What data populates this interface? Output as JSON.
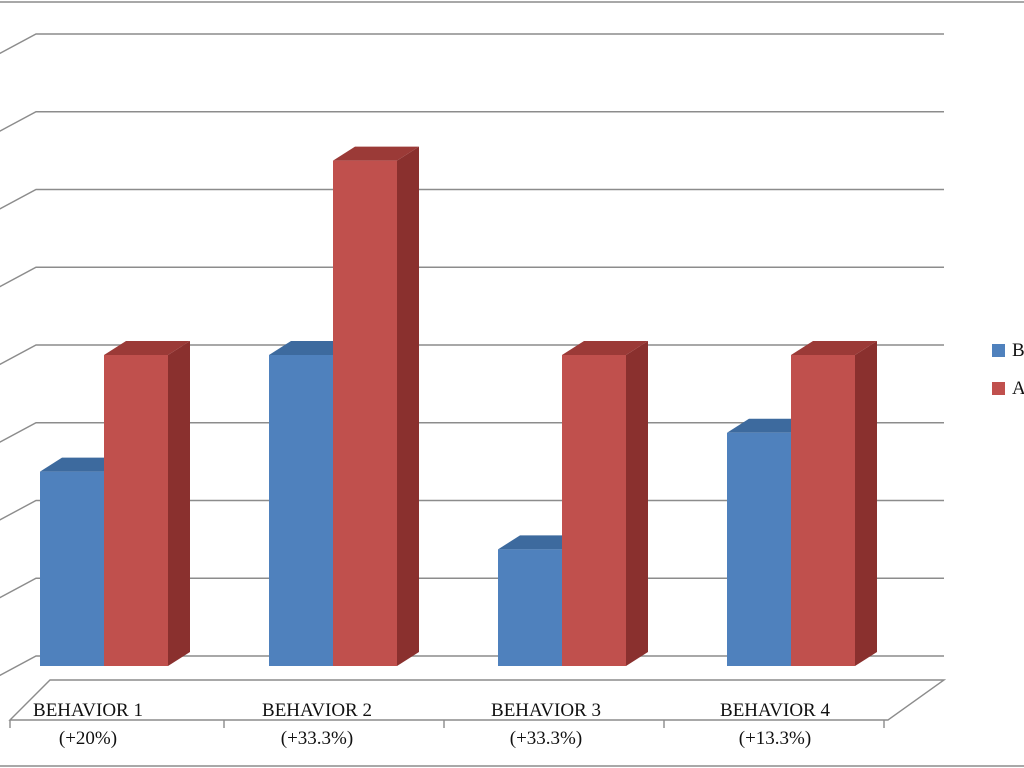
{
  "chart_data": {
    "type": "bar",
    "categories": [
      {
        "name": "BEHAVIOR 1",
        "change": "(+20%)"
      },
      {
        "name": "BEHAVIOR 2",
        "change": "(+33.3%)"
      },
      {
        "name": "BEHAVIOR 3",
        "change": "(+33.3%)"
      },
      {
        "name": "BEHAVIOR 4",
        "change": "(+13.3%)"
      }
    ],
    "series": [
      {
        "name": "B",
        "color": "#4f81bd",
        "side_color": "#3a6597",
        "top_color": "#3d6a9e",
        "values": [
          2.5,
          4,
          1.5,
          3
        ]
      },
      {
        "name": "A",
        "color": "#c0504d",
        "side_color": "#8a302e",
        "top_color": "#9b3a37",
        "values": [
          4,
          6.5,
          4,
          4
        ]
      }
    ],
    "ylim": [
      0,
      8
    ],
    "grid": true,
    "legend_position": "right",
    "style": "3d-clustered-column"
  }
}
